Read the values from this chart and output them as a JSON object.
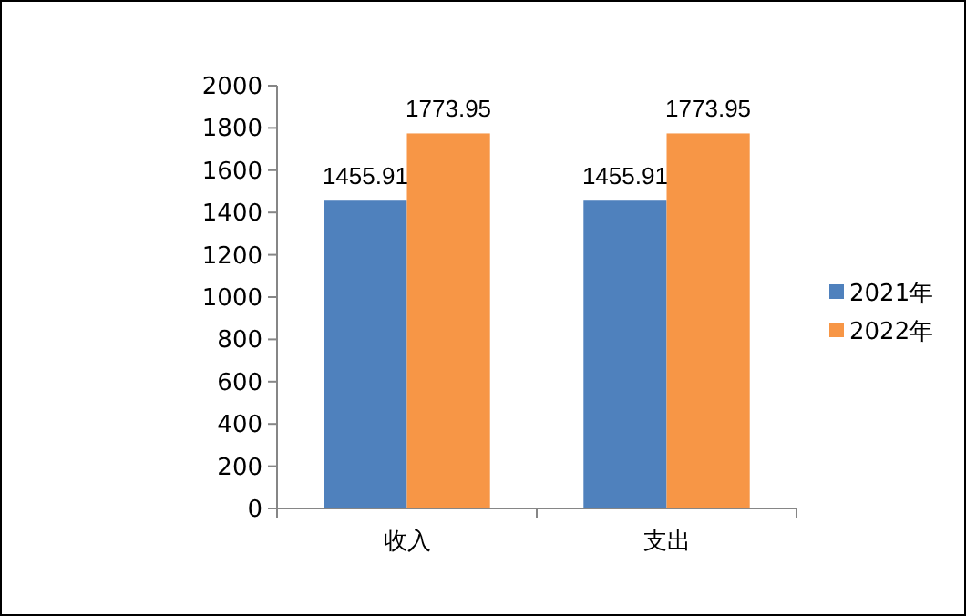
{
  "chart_data": {
    "type": "bar",
    "categories": [
      "收入",
      "支出"
    ],
    "series": [
      {
        "name": "2021年",
        "color": "#4f81bd",
        "values": [
          1455.91,
          1455.91
        ]
      },
      {
        "name": "2022年",
        "color": "#f79646",
        "values": [
          1773.95,
          1773.95
        ]
      }
    ],
    "ylim": [
      0,
      2000
    ],
    "yticks": [
      0,
      200,
      400,
      600,
      800,
      1000,
      1200,
      1400,
      1600,
      1800,
      2000
    ],
    "data_labels": true,
    "legend": "right"
  }
}
